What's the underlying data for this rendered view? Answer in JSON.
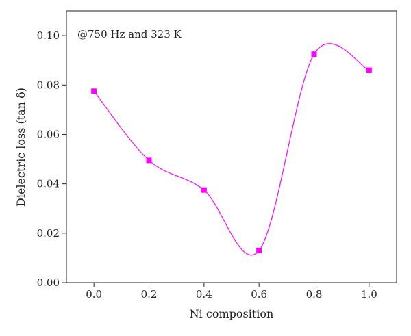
{
  "chart_data": {
    "type": "scatter",
    "annotation": "@750 Hz and 323 K",
    "xlabel": "Ni composition",
    "ylabel": "Dielectric loss (tan δ)",
    "xlim": [
      -0.1,
      1.1
    ],
    "ylim": [
      0.0,
      0.11
    ],
    "x_ticks": [
      0.0,
      0.2,
      0.4,
      0.6,
      0.8,
      1.0
    ],
    "x_tick_labels": [
      "0.0",
      "0.2",
      "0.4",
      "0.6",
      "0.8",
      "1.0"
    ],
    "y_ticks": [
      0.0,
      0.02,
      0.04,
      0.06,
      0.08,
      0.1
    ],
    "y_tick_labels": [
      "0.00",
      "0.02",
      "0.04",
      "0.06",
      "0.08",
      "0.10"
    ],
    "grid": false,
    "series": [
      {
        "x": [
          0.0,
          0.2,
          0.4,
          0.6,
          0.8,
          1.0
        ],
        "y": [
          0.0775,
          0.0495,
          0.0375,
          0.013,
          0.0925,
          0.086
        ],
        "marker": "square",
        "color": "#ff00ff",
        "line": "smooth spline"
      }
    ]
  }
}
